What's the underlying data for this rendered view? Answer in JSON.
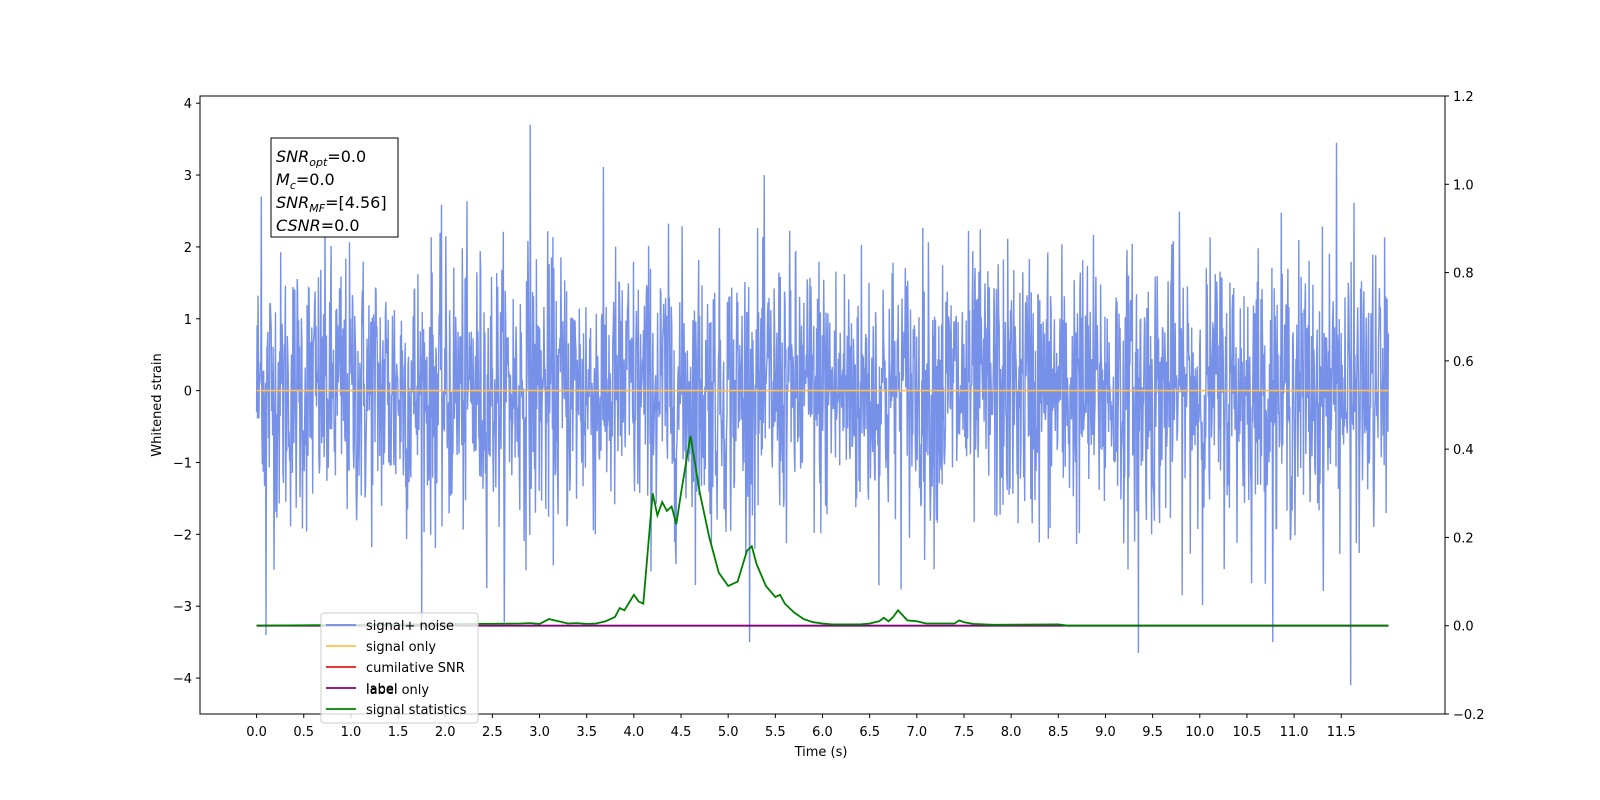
{
  "chart_data": {
    "type": "line",
    "xlabel": "Time (s)",
    "ylabel": "Whitened strain",
    "xlim": [
      -0.6,
      12.6
    ],
    "ylim": [
      -4.5,
      4.1
    ],
    "y2lim": [
      -0.2,
      1.2
    ],
    "x_ticks": [
      0.0,
      0.5,
      1.0,
      1.5,
      2.0,
      2.5,
      3.0,
      3.5,
      4.0,
      4.5,
      5.0,
      5.5,
      6.0,
      6.5,
      7.0,
      7.5,
      8.0,
      8.5,
      9.0,
      9.5,
      10.0,
      10.5,
      11.0,
      11.5
    ],
    "x_tick_labels": [
      "0.0",
      "0.5",
      "1.0",
      "1.5",
      "2.0",
      "2.5",
      "3.0",
      "3.5",
      "4.0",
      "4.5",
      "5.0",
      "5.5",
      "6.0",
      "6.5",
      "7.0",
      "7.5",
      "8.0",
      "8.5",
      "9.0",
      "9.5",
      "10.0",
      "10.5",
      "11.0",
      "11.5"
    ],
    "y_ticks": [
      -4,
      -3,
      -2,
      -1,
      0,
      1,
      2,
      3,
      4
    ],
    "y_tick_labels": [
      "−4",
      "−3",
      "−2",
      "−1",
      "0",
      "1",
      "2",
      "3",
      "4"
    ],
    "y2_ticks": [
      -0.2,
      0.0,
      0.2,
      0.4,
      0.6,
      0.8,
      1.0,
      1.2
    ],
    "y2_tick_labels": [
      "−0.2",
      "0.0",
      "0.2",
      "0.4",
      "0.6",
      "0.8",
      "1.0",
      "1.2"
    ],
    "grid": false,
    "legend_position": "lower-left",
    "series": [
      {
        "name": "signal+ noise",
        "color": "#6f8be6",
        "axis": "left",
        "description_range": [
          -3.5,
          3.7
        ],
        "x_range": [
          0.0,
          12.0
        ],
        "notable_peaks": [
          [
            0.05,
            2.7
          ],
          [
            2.9,
            3.7
          ],
          [
            11.45,
            3.45
          ],
          [
            9.35,
            -3.65
          ],
          [
            11.6,
            -4.1
          ],
          [
            0.1,
            -3.4
          ]
        ]
      },
      {
        "name": "signal only",
        "color": "#ffc04d",
        "axis": "left",
        "x": [
          0.0,
          12.0
        ],
        "y": [
          0.0,
          0.0
        ]
      },
      {
        "name": "cumilative SNR",
        "color": "#e41a1c",
        "axis": "right",
        "x": [
          0.0,
          12.0
        ],
        "y": [
          0.0,
          0.0
        ]
      },
      {
        "name": "label",
        "color": "#800080",
        "axis": "right",
        "x": [
          0.0,
          12.0
        ],
        "y": [
          0.0,
          0.0
        ]
      },
      {
        "name": "signal statistics",
        "color": "#008000",
        "axis": "right",
        "x": [
          0.0,
          2.8,
          2.9,
          3.0,
          3.1,
          3.2,
          3.3,
          3.4,
          3.5,
          3.6,
          3.7,
          3.8,
          3.85,
          3.9,
          4.0,
          4.05,
          4.1,
          4.2,
          4.25,
          4.3,
          4.35,
          4.4,
          4.45,
          4.5,
          4.6,
          4.7,
          4.8,
          4.9,
          5.0,
          5.05,
          5.1,
          5.2,
          5.25,
          5.3,
          5.4,
          5.5,
          5.55,
          5.6,
          5.65,
          5.7,
          5.8,
          5.9,
          6.0,
          6.1,
          6.4,
          6.5,
          6.6,
          6.65,
          6.7,
          6.75,
          6.8,
          6.9,
          7.0,
          7.1,
          7.4,
          7.45,
          7.5,
          7.6,
          7.8,
          8.5,
          8.6,
          8.7,
          12.0
        ],
        "y": [
          0.0,
          0.005,
          0.006,
          0.004,
          0.015,
          0.01,
          0.005,
          0.006,
          0.004,
          0.005,
          0.01,
          0.02,
          0.04,
          0.035,
          0.07,
          0.055,
          0.05,
          0.3,
          0.25,
          0.28,
          0.26,
          0.27,
          0.23,
          0.3,
          0.43,
          0.3,
          0.2,
          0.12,
          0.09,
          0.095,
          0.1,
          0.17,
          0.18,
          0.14,
          0.09,
          0.065,
          0.07,
          0.05,
          0.04,
          0.03,
          0.015,
          0.008,
          0.005,
          0.003,
          0.003,
          0.005,
          0.01,
          0.018,
          0.01,
          0.02,
          0.035,
          0.012,
          0.01,
          0.005,
          0.005,
          0.012,
          0.008,
          0.004,
          0.002,
          0.003,
          0.0,
          0.0,
          0.0
        ]
      }
    ],
    "annotation_lines": [
      {
        "label": "SNR",
        "sub": "opt",
        "value": "=0.0"
      },
      {
        "label": "M",
        "sub": "c",
        "value": "=0.0"
      },
      {
        "label": "SNR",
        "sub": "MF",
        "value": "=[4.56]"
      },
      {
        "label": "CSNR",
        "sub": "",
        "value": "=0.0"
      }
    ],
    "occluded_legend_fragment": "label only"
  }
}
